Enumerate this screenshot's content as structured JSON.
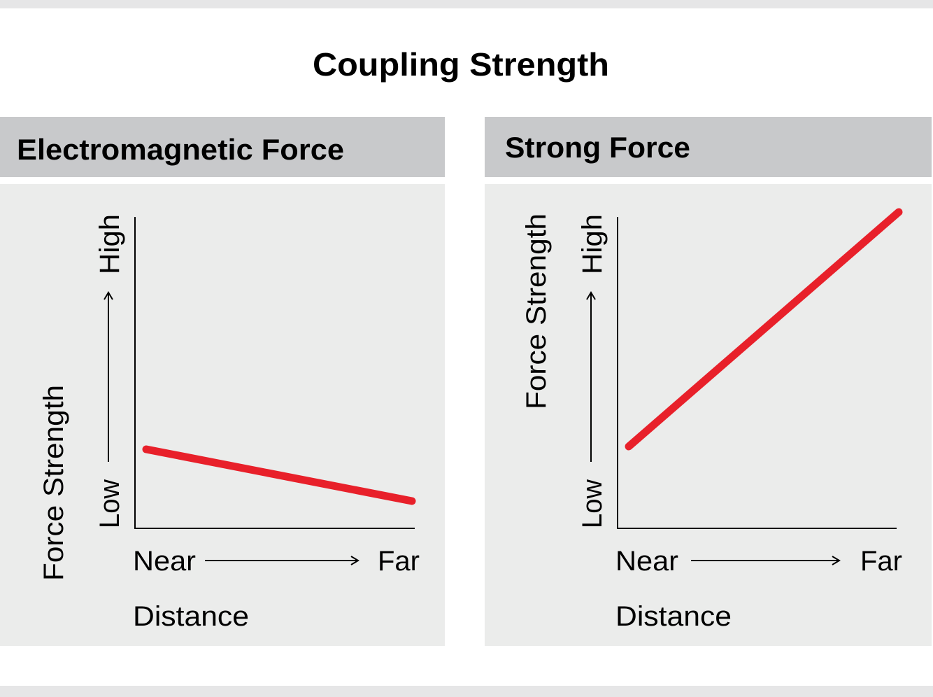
{
  "title": "Coupling Strength",
  "panels": [
    {
      "title": "Electromagnetic Force",
      "y_label": "Force Strength",
      "y_low": "Low",
      "y_high": "High",
      "x_near": "Near",
      "x_far": "Far",
      "x_label": "Distance"
    },
    {
      "title": "Strong Force",
      "y_label": "Force Strength",
      "y_low": "Low",
      "y_high": "High",
      "x_near": "Near",
      "x_far": "Far",
      "x_label": "Distance"
    }
  ]
}
